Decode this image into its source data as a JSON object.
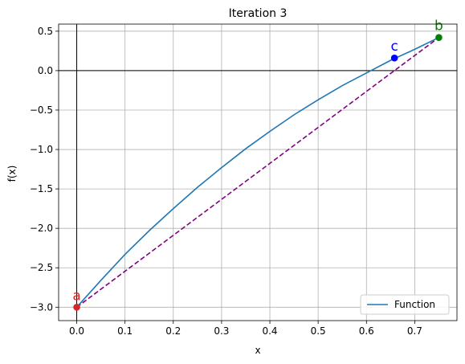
{
  "chart_data": {
    "type": "line",
    "title": "Iteration 3",
    "xlabel": "x",
    "ylabel": "f(x)",
    "xlim": [
      -0.0375,
      0.7875
    ],
    "ylim": [
      -3.17,
      0.59
    ],
    "xticks": [
      0.0,
      0.1,
      0.2,
      0.3,
      0.4,
      0.5,
      0.6,
      0.7
    ],
    "xtick_labels": [
      "0.0",
      "0.1",
      "0.2",
      "0.3",
      "0.4",
      "0.5",
      "0.6",
      "0.7"
    ],
    "yticks": [
      -3.0,
      -2.5,
      -2.0,
      -1.5,
      -1.0,
      -0.5,
      0.0,
      0.5
    ],
    "ytick_labels": [
      "−3.0",
      "−2.5",
      "−2.0",
      "−1.5",
      "−1.0",
      "−0.5",
      "0.0",
      "0.5"
    ],
    "grid": true,
    "reference_lines": {
      "x": 0,
      "y": 0,
      "color": "#000000"
    },
    "series": [
      {
        "name": "Function",
        "color": "#1f77b4",
        "x": [
          0.0,
          0.05,
          0.1,
          0.15,
          0.2,
          0.25,
          0.3,
          0.35,
          0.4,
          0.45,
          0.5,
          0.55,
          0.6,
          0.65,
          0.7,
          0.75
        ],
        "y": [
          -3.0,
          -2.66,
          -2.33,
          -2.03,
          -1.75,
          -1.48,
          -1.23,
          -0.99,
          -0.77,
          -0.56,
          -0.37,
          -0.19,
          -0.03,
          0.13,
          0.27,
          0.42
        ]
      }
    ],
    "secant": {
      "x": [
        0.0,
        0.75
      ],
      "y": [
        -3.0,
        0.42
      ],
      "color": "#800080",
      "style": "dashed"
    },
    "points": [
      {
        "label": "a",
        "x": 0.0,
        "y": -3.0,
        "color": "#d62728"
      },
      {
        "label": "b",
        "x": 0.75,
        "y": 0.42,
        "color": "#008000"
      },
      {
        "label": "c",
        "x": 0.658,
        "y": 0.16,
        "color": "#0000ff"
      }
    ],
    "legend": {
      "placement": "lower-right",
      "entries": [
        "Function"
      ]
    }
  }
}
